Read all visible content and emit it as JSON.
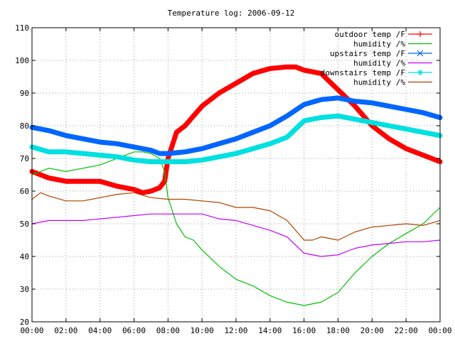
{
  "chart_data": {
    "type": "line",
    "title": "Temperature log: 2006-09-12",
    "xlabel": "",
    "ylabel": "",
    "x_ticks": [
      "00:00",
      "02:00",
      "04:00",
      "06:00",
      "08:00",
      "10:00",
      "12:00",
      "14:00",
      "16:00",
      "18:00",
      "20:00",
      "22:00",
      "00:00"
    ],
    "y_ticks": [
      20,
      30,
      40,
      50,
      60,
      70,
      80,
      90,
      100,
      110
    ],
    "xlim": [
      0,
      24
    ],
    "ylim": [
      20,
      110
    ],
    "grid": true,
    "legend_position": "top-right",
    "series": [
      {
        "name": "outdoor temp /F",
        "color": "#ff0000",
        "marker": "plus",
        "bold": true,
        "x": [
          0,
          1,
          2,
          3,
          4,
          5,
          5.5,
          6,
          6.5,
          7,
          7.5,
          7.8,
          8,
          8.5,
          9,
          9.5,
          10,
          11,
          12,
          13,
          14,
          15,
          15.5,
          16,
          17,
          18,
          19,
          20,
          21,
          22,
          23,
          24
        ],
        "y": [
          66,
          64,
          63,
          63,
          63,
          61.5,
          61,
          60.5,
          59.5,
          60,
          61,
          63,
          70,
          78,
          80,
          83,
          86,
          90,
          93,
          96,
          97.5,
          98,
          98,
          97,
          96,
          91,
          86,
          80,
          76,
          73,
          71,
          69
        ]
      },
      {
        "name": "humidity /%",
        "color": "#00c000",
        "marker": "none",
        "bold": false,
        "x": [
          0,
          1,
          2,
          3,
          4,
          5,
          6,
          6.5,
          7,
          7.5,
          7.8,
          8,
          8.5,
          9,
          9.5,
          10,
          11,
          12,
          13,
          14,
          15,
          16,
          17,
          18,
          19,
          20,
          21,
          22,
          23,
          24
        ],
        "y": [
          65,
          67,
          66,
          67,
          68,
          70,
          72,
          72,
          71.5,
          70,
          66,
          58,
          50,
          46,
          45,
          42,
          37,
          33,
          31,
          28,
          26,
          25,
          26,
          29,
          35,
          40,
          44,
          47,
          50,
          55
        ]
      },
      {
        "name": "upstairs temp /F",
        "color": "#0066ff",
        "marker": "cross",
        "bold": true,
        "x": [
          0,
          1,
          2,
          3,
          4,
          5,
          6,
          7,
          7.5,
          8,
          9,
          10,
          11,
          12,
          13,
          14,
          15,
          16,
          17,
          18,
          19,
          20,
          21,
          22,
          23,
          24
        ],
        "y": [
          79.5,
          78.5,
          77,
          76,
          75,
          74.5,
          73.5,
          72.5,
          71.5,
          71.5,
          72,
          73,
          74.5,
          76,
          78,
          80,
          83,
          86.5,
          88,
          88.5,
          87.5,
          87,
          86,
          85,
          84,
          82.5
        ]
      },
      {
        "name": "humidity /%",
        "color": "#c000ff",
        "marker": "none",
        "bold": false,
        "x": [
          0,
          1,
          2,
          3,
          4,
          5,
          6,
          7,
          8,
          9,
          10,
          11,
          12,
          13,
          14,
          15,
          16,
          17,
          18,
          19,
          20,
          21,
          22,
          23,
          24
        ],
        "y": [
          50,
          51,
          51,
          51,
          51.5,
          52,
          52.5,
          53,
          53,
          53,
          53,
          51.5,
          51,
          49.5,
          48,
          46,
          41,
          40,
          40.5,
          42.5,
          43.5,
          44,
          44.5,
          44.5,
          45
        ]
      },
      {
        "name": "downstairs temp /F",
        "color": "#00e0e0",
        "marker": "star",
        "bold": true,
        "x": [
          0,
          1,
          2,
          3,
          4,
          5,
          6,
          7,
          8,
          9,
          10,
          11,
          12,
          13,
          14,
          15,
          16,
          17,
          18,
          19,
          20,
          21,
          22,
          23,
          24
        ],
        "y": [
          73.5,
          72,
          72,
          71.5,
          71,
          70.5,
          69.5,
          69,
          69,
          69,
          69.5,
          70.5,
          71.5,
          73,
          74.5,
          76.5,
          81.5,
          82.5,
          83,
          82,
          81,
          80,
          79,
          78,
          77
        ]
      },
      {
        "name": "humidity /%",
        "color": "#b04000",
        "marker": "none",
        "bold": false,
        "x": [
          0,
          0.5,
          1,
          2,
          3,
          4,
          5,
          6,
          7,
          8,
          9,
          10,
          11,
          12,
          13,
          14,
          15,
          16,
          16.5,
          17,
          18,
          19,
          20,
          21,
          22,
          23,
          24
        ],
        "y": [
          57.5,
          59.5,
          58.5,
          57,
          57,
          58,
          59,
          59.5,
          58,
          57.5,
          57.5,
          57,
          56.5,
          55,
          55,
          54,
          51,
          45,
          45,
          46,
          45,
          47.5,
          49,
          49.5,
          50,
          49.5,
          51
        ]
      }
    ]
  }
}
